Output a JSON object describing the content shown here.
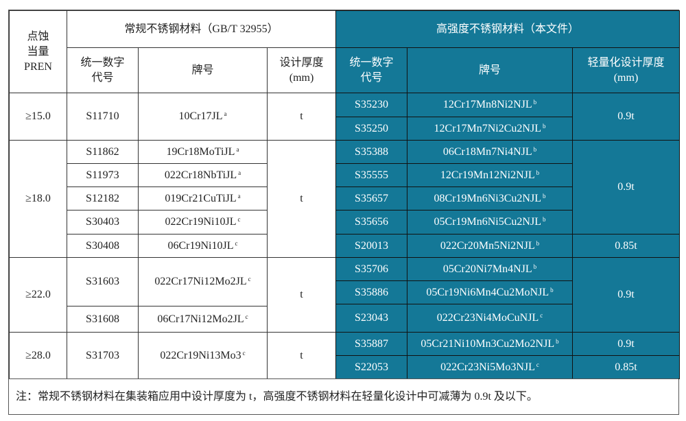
{
  "left": {
    "header": {
      "pren": "点蚀\n当量\nPREN",
      "title": "常规不锈钢材料（GB/T 32955）",
      "code": "统一数字\n代号",
      "grade": "牌号",
      "thickness": "设计厚度\n(mm)"
    },
    "groups": [
      {
        "pren": "≥15.0",
        "thickness": "t",
        "rows": [
          {
            "code": "S11710",
            "grade": "10Cr17JL",
            "sup": "a"
          }
        ]
      },
      {
        "pren": "≥18.0",
        "thickness": "t",
        "rows": [
          {
            "code": "S11862",
            "grade": "19Cr18MoTiJL",
            "sup": "a"
          },
          {
            "code": "S11973",
            "grade": "022Cr18NbTiJL",
            "sup": "a"
          },
          {
            "code": "S12182",
            "grade": "019Cr21CuTiJL",
            "sup": "a"
          },
          {
            "code": "S30403",
            "grade": "022Cr19Ni10JL",
            "sup": "c"
          },
          {
            "code": "S30408",
            "grade": "06Cr19Ni10JL",
            "sup": "c"
          }
        ]
      },
      {
        "pren": "≥22.0",
        "thickness": "t",
        "rows": [
          {
            "code": "S31603",
            "grade": "022Cr17Ni12Mo2JL",
            "sup": "c"
          },
          {
            "code": "S31608",
            "grade": "06Cr17Ni12Mo2JL",
            "sup": "c"
          }
        ]
      },
      {
        "pren": "≥28.0",
        "thickness": "t",
        "rows": [
          {
            "code": "S31703",
            "grade": "022Cr19Ni13Mo3",
            "sup": "c"
          }
        ]
      }
    ]
  },
  "right": {
    "header": {
      "title": "高强度不锈钢材料（本文件）",
      "code": "统一数字\n代号",
      "grade": "牌号",
      "thickness": "轻量化设计厚度\n(mm)"
    },
    "groups": [
      {
        "thickness": "0.9t",
        "rows": [
          {
            "code": "S35230",
            "grade": "12Cr17Mn8Ni2NJL",
            "sup": "b"
          },
          {
            "code": "S35250",
            "grade": "12Cr17Mn7Ni2Cu2NJL",
            "sup": "b"
          }
        ]
      },
      {
        "thickness": "0.9t",
        "rows": [
          {
            "code": "S35388",
            "grade": "06Cr18Mn7Ni4NJL",
            "sup": "b"
          },
          {
            "code": "S35555",
            "grade": "12Cr19Mn12Ni2NJL",
            "sup": "b"
          },
          {
            "code": "S35657",
            "grade": "08Cr19Mn6Ni3Cu2NJL",
            "sup": "b"
          },
          {
            "code": "S35656",
            "grade": "05Cr19Mn6Ni5Cu2NJL",
            "sup": "b"
          }
        ]
      },
      {
        "thickness": "0.85t",
        "rows": [
          {
            "code": "S20013",
            "grade": "022Cr20Mn5Ni2NJL",
            "sup": "b"
          }
        ]
      },
      {
        "thickness": "0.9t",
        "rows": [
          {
            "code": "S35706",
            "grade": "05Cr20Ni7Mn4NJL",
            "sup": "b"
          },
          {
            "code": "S35886",
            "grade": "05Cr19Ni6Mn4Cu2MoNJL",
            "sup": "b"
          },
          {
            "code": "S23043",
            "grade": "022Cr23Ni4MoCuNJL",
            "sup": "c"
          }
        ]
      },
      {
        "thickness": "0.9t",
        "rows": [
          {
            "code": "S35887",
            "grade": "05Cr21Ni10Mn3Cu2Mo2NJL",
            "sup": "b"
          }
        ]
      },
      {
        "thickness": "0.85t",
        "rows": [
          {
            "code": "S22053",
            "grade": "022Cr23Ni5Mo3NJL",
            "sup": "c"
          }
        ]
      }
    ]
  },
  "footer": {
    "note": "注：常规不锈钢材料在集装箱应用中设计厚度为 t，高强度不锈钢材料在轻量化设计中可减薄为 0.9t 及以下。"
  },
  "colors": {
    "highlight_bg": "#147897",
    "highlight_text": "#ffffff"
  }
}
